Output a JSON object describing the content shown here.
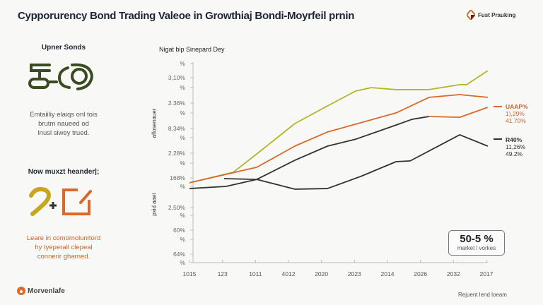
{
  "header": {
    "title": "Cypporurency Bond Trading Valeoe in Growthiaj Bondi-Moyrfeil prnin",
    "brand_label": "Fust Prauking",
    "brand_icon": "diamond-star-icon"
  },
  "left_panel": {
    "section1": {
      "heading": "Upner Sonds",
      "icon": "bond-chain-icon",
      "text": [
        "Emtaiiliy elaiqs onl tois",
        "brutm naueed od",
        "lnusl siwey trued."
      ]
    },
    "section2": {
      "heading": "Now muxzt heander|;",
      "icon": "hook-plus-box-icon",
      "text": [
        "Leare in comomolunitord",
        "hy tyeperall clepeal",
        "connerir gharned."
      ]
    },
    "logo_label": "Morvenlafe"
  },
  "colors": {
    "yellow_green": "#b5b529",
    "orange": "#d9692a",
    "dark": "#333333",
    "accent_text_orange": "#c9642e"
  },
  "chart_data": {
    "type": "line",
    "subtitle": "Nigat bip Sinepard Dey",
    "ylabels": [
      "aflosenauer",
      "pxid aaet"
    ],
    "y_ticks": [
      "%",
      "3,10%",
      "%",
      "2.36%",
      "%",
      "8,34%",
      "%",
      "2.28%",
      "%",
      "168%",
      "%",
      "2.50%",
      "%",
      "60%",
      "%",
      "64%",
      "%"
    ],
    "x_ticks": [
      "1015",
      "123",
      "1011",
      "4012",
      "2020",
      "2023",
      "2014",
      "2026",
      "2032",
      "2017"
    ],
    "grid": false,
    "series": [
      {
        "color": "#b5b529",
        "points": [
          [
            0,
            39.4
          ],
          [
            1.33,
            44.7
          ],
          [
            2.04,
            53.9
          ],
          [
            3.19,
            69.1
          ],
          [
            4.18,
            78.0
          ],
          [
            5.04,
            85.5
          ],
          [
            5.51,
            87.2
          ],
          [
            6.26,
            86.2
          ],
          [
            7.26,
            86.2
          ],
          [
            8.19,
            88.7
          ],
          [
            8.4,
            88.7
          ],
          [
            9.04,
            95.7
          ]
        ]
      },
      {
        "color": "#d9692a",
        "points": [
          [
            0,
            39.4
          ],
          [
            2.04,
            47.2
          ],
          [
            3.19,
            57.8
          ],
          [
            4.18,
            64.9
          ],
          [
            6.26,
            74.5
          ],
          [
            7.26,
            82.3
          ],
          [
            8.19,
            83.7
          ],
          [
            9.04,
            82.3
          ]
        ]
      },
      {
        "color": "#333333",
        "points": [
          [
            0,
            36.5
          ],
          [
            1.11,
            37.6
          ],
          [
            2.04,
            41.1
          ],
          [
            3.19,
            50.7
          ],
          [
            4.18,
            57.8
          ],
          [
            5.04,
            61.3
          ],
          [
            6.26,
            68.4
          ],
          [
            6.75,
            71.3
          ],
          [
            7.26,
            72.7
          ]
        ]
      },
      {
        "color": "#d9692a",
        "points": [
          [
            7.26,
            72.7
          ],
          [
            8.19,
            72.3
          ],
          [
            9.04,
            77.3
          ]
        ]
      },
      {
        "color": "#333333",
        "points": [
          [
            1.05,
            41.5
          ],
          [
            2.04,
            41.1
          ],
          [
            3.19,
            36.2
          ],
          [
            4.18,
            36.5
          ],
          [
            5.19,
            42.6
          ],
          [
            6.26,
            50.0
          ],
          [
            6.69,
            50.4
          ],
          [
            8.19,
            63.5
          ],
          [
            9.04,
            57.8
          ]
        ]
      }
    ],
    "right_labels": [
      {
        "color": "#d9692a",
        "lines": [
          "UAAP%",
          "1),29%",
          "41,70%"
        ]
      },
      {
        "color": "#333333",
        "lines": [
          "R40%",
          "11,26%",
          "49.2%"
        ]
      }
    ]
  },
  "kpi": {
    "value": "50-5 %",
    "label": "market l vorkes"
  },
  "footer": "Rejuent lend loeam"
}
